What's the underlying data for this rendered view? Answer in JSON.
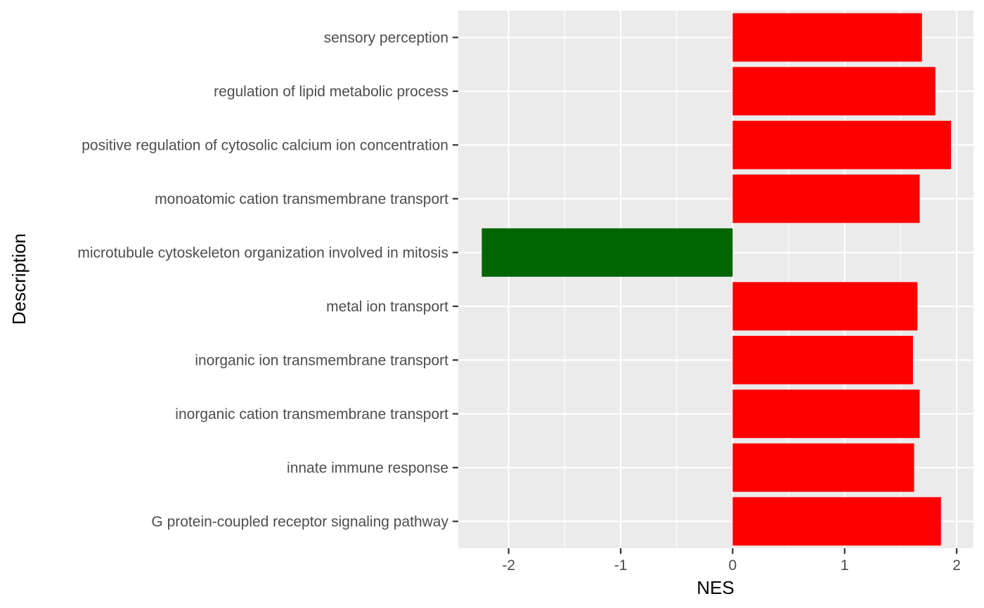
{
  "chart_data": {
    "type": "bar",
    "orientation": "horizontal",
    "xlabel": "NES",
    "ylabel": "Description",
    "xlim": [
      -2.45,
      2.15
    ],
    "x_ticks": [
      -2,
      -1,
      0,
      1,
      2
    ],
    "x_tick_labels": [
      "-2",
      "-1",
      "0",
      "1",
      "2"
    ],
    "grid": true,
    "legend": "none",
    "panel_background": "#ebebeb",
    "grid_color": "#ffffff",
    "positive_color": "#ff0000",
    "negative_color": "#006400",
    "categories": [
      "sensory perception",
      "regulation of lipid metabolic process",
      "positive regulation of cytosolic calcium ion concentration",
      "monoatomic cation transmembrane transport",
      "microtubule cytoskeleton organization involved in mitosis",
      "metal ion transport",
      "inorganic ion transmembrane transport",
      "inorganic cation transmembrane transport",
      "innate immune response",
      "G protein-coupled receptor signaling pathway"
    ],
    "values": [
      1.69,
      1.81,
      1.95,
      1.67,
      -2.24,
      1.65,
      1.61,
      1.67,
      1.62,
      1.86
    ]
  }
}
